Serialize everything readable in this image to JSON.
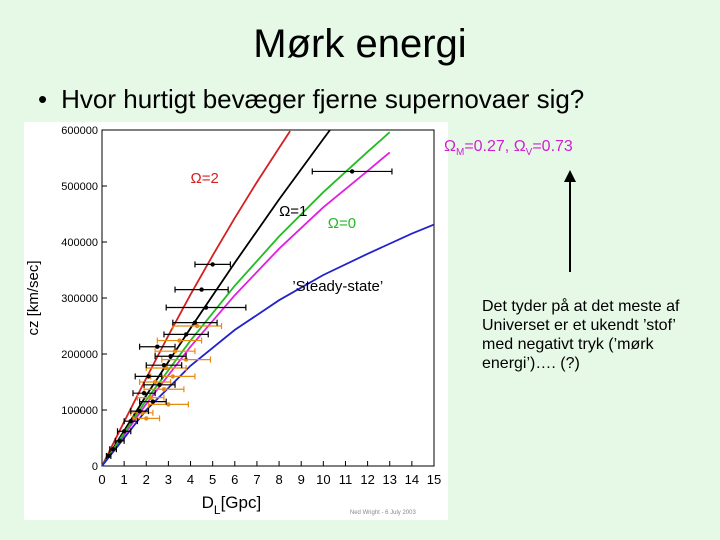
{
  "slide": {
    "title": "Mørk energi",
    "bullet": "•",
    "question": "Hvor hurtigt bevæger fjerne supernovaer sig?",
    "note": "Det tyder på at det meste af Universet er et ukendt ’stof’ med negativt tryk (’mørk energi’)…. (?)",
    "params_prefix": "Ω",
    "params_sub1": "M",
    "params_mid": "=0.27, Ω",
    "params_sub2": "V",
    "params_suffix": "=0.73",
    "omega2": "Ω=2",
    "omega1": "Ω=1",
    "omega0": "Ω=0",
    "steady": "’Steady-state’"
  },
  "colors": {
    "background": "#e6f8e6",
    "omega2": "#d42020",
    "omega1": "#000000",
    "lambda": "#e020e0",
    "omega0": "#22bb22",
    "steady": "#2222cc",
    "data_black": "#000000",
    "data_orange": "#e88a10",
    "params_text": "#d020d0"
  },
  "chart_data": {
    "type": "line",
    "xlabel_main": "D",
    "xlabel_sub": "L",
    "xlabel_unit": "[Gpc]",
    "ylabel": "cz [km/sec]",
    "credit": "Ned Wright - 6 July 2003",
    "xlim": [
      0,
      15
    ],
    "ylim": [
      0,
      600000
    ],
    "xticks": [
      "0",
      "1",
      "2",
      "3",
      "4",
      "5",
      "6",
      "7",
      "8",
      "9",
      "10",
      "11",
      "12",
      "13",
      "14",
      "15"
    ],
    "yticks": [
      "0",
      "100000",
      "200000",
      "300000",
      "400000",
      "500000",
      "600000"
    ],
    "series": [
      {
        "name": "Ω=2",
        "color_key": "omega2",
        "points": [
          [
            0,
            0
          ],
          [
            1,
            79000
          ],
          [
            2,
            157000
          ],
          [
            3,
            233000
          ],
          [
            4,
            306000
          ],
          [
            5,
            376000
          ],
          [
            6,
            443000
          ],
          [
            7,
            507000
          ],
          [
            8,
            568000
          ],
          [
            8.5,
            598000
          ]
        ]
      },
      {
        "name": "Ω=1",
        "color_key": "omega1",
        "points": [
          [
            0,
            0
          ],
          [
            2,
            126000
          ],
          [
            4,
            246000
          ],
          [
            6,
            363000
          ],
          [
            8,
            476000
          ],
          [
            10,
            584000
          ],
          [
            10.3,
            600000
          ]
        ]
      },
      {
        "name": "ΩM=0.27, ΩV=0.73",
        "color_key": "lambda",
        "points": [
          [
            0,
            0
          ],
          [
            2,
            111000
          ],
          [
            4,
            213000
          ],
          [
            6,
            305000
          ],
          [
            8,
            388000
          ],
          [
            10,
            462000
          ],
          [
            12,
            527000
          ],
          [
            13,
            560000
          ]
        ]
      },
      {
        "name": "Ω=0",
        "color_key": "omega0",
        "points": [
          [
            0,
            0
          ],
          [
            2,
            118000
          ],
          [
            4,
            224000
          ],
          [
            6,
            322000
          ],
          [
            8,
            410000
          ],
          [
            10,
            489000
          ],
          [
            12,
            561000
          ],
          [
            13,
            596000
          ]
        ]
      },
      {
        "name": "’Steady-state’",
        "color_key": "steady",
        "points": [
          [
            0,
            0
          ],
          [
            2,
            100000
          ],
          [
            4,
            179000
          ],
          [
            6,
            243000
          ],
          [
            8,
            296000
          ],
          [
            10,
            341000
          ],
          [
            12,
            379000
          ],
          [
            14,
            415000
          ],
          [
            15,
            431000
          ]
        ]
      }
    ],
    "points_black": [
      {
        "x": 11.3,
        "y": 526000,
        "xerr": 1.8
      },
      {
        "x": 5.0,
        "y": 360000,
        "xerr": 0.8
      },
      {
        "x": 4.5,
        "y": 315000,
        "xerr": 1.2
      },
      {
        "x": 4.7,
        "y": 283000,
        "xerr": 1.8
      },
      {
        "x": 4.2,
        "y": 256000,
        "xerr": 1.0
      },
      {
        "x": 3.8,
        "y": 235000,
        "xerr": 1.0
      },
      {
        "x": 2.5,
        "y": 213000,
        "xerr": 0.8
      },
      {
        "x": 3.1,
        "y": 196000,
        "xerr": 0.7
      },
      {
        "x": 2.8,
        "y": 180000,
        "xerr": 0.8
      },
      {
        "x": 2.1,
        "y": 160000,
        "xerr": 0.6
      },
      {
        "x": 2.6,
        "y": 145000,
        "xerr": 0.7
      },
      {
        "x": 1.9,
        "y": 130000,
        "xerr": 0.5
      },
      {
        "x": 2.3,
        "y": 115000,
        "xerr": 0.6
      },
      {
        "x": 1.7,
        "y": 98000,
        "xerr": 0.4
      },
      {
        "x": 1.3,
        "y": 80000,
        "xerr": 0.3
      },
      {
        "x": 1.0,
        "y": 62000,
        "xerr": 0.3
      },
      {
        "x": 0.8,
        "y": 45000,
        "xerr": 0.2
      },
      {
        "x": 0.5,
        "y": 30000,
        "xerr": 0.15
      },
      {
        "x": 0.3,
        "y": 18000,
        "xerr": 0.1
      }
    ],
    "points_orange": [
      {
        "x": 4.3,
        "y": 250000,
        "xerr": 1.1
      },
      {
        "x": 3.5,
        "y": 224000,
        "xerr": 1.0
      },
      {
        "x": 3.3,
        "y": 205000,
        "xerr": 0.9
      },
      {
        "x": 3.8,
        "y": 190000,
        "xerr": 1.1
      },
      {
        "x": 2.9,
        "y": 175000,
        "xerr": 0.9
      },
      {
        "x": 3.2,
        "y": 160000,
        "xerr": 1.0
      },
      {
        "x": 2.4,
        "y": 150000,
        "xerr": 0.7
      },
      {
        "x": 2.8,
        "y": 137000,
        "xerr": 0.9
      },
      {
        "x": 2.2,
        "y": 122000,
        "xerr": 0.6
      },
      {
        "x": 3.0,
        "y": 110000,
        "xerr": 0.9
      },
      {
        "x": 1.8,
        "y": 95000,
        "xerr": 0.5
      },
      {
        "x": 2.0,
        "y": 85000,
        "xerr": 0.6
      }
    ]
  }
}
